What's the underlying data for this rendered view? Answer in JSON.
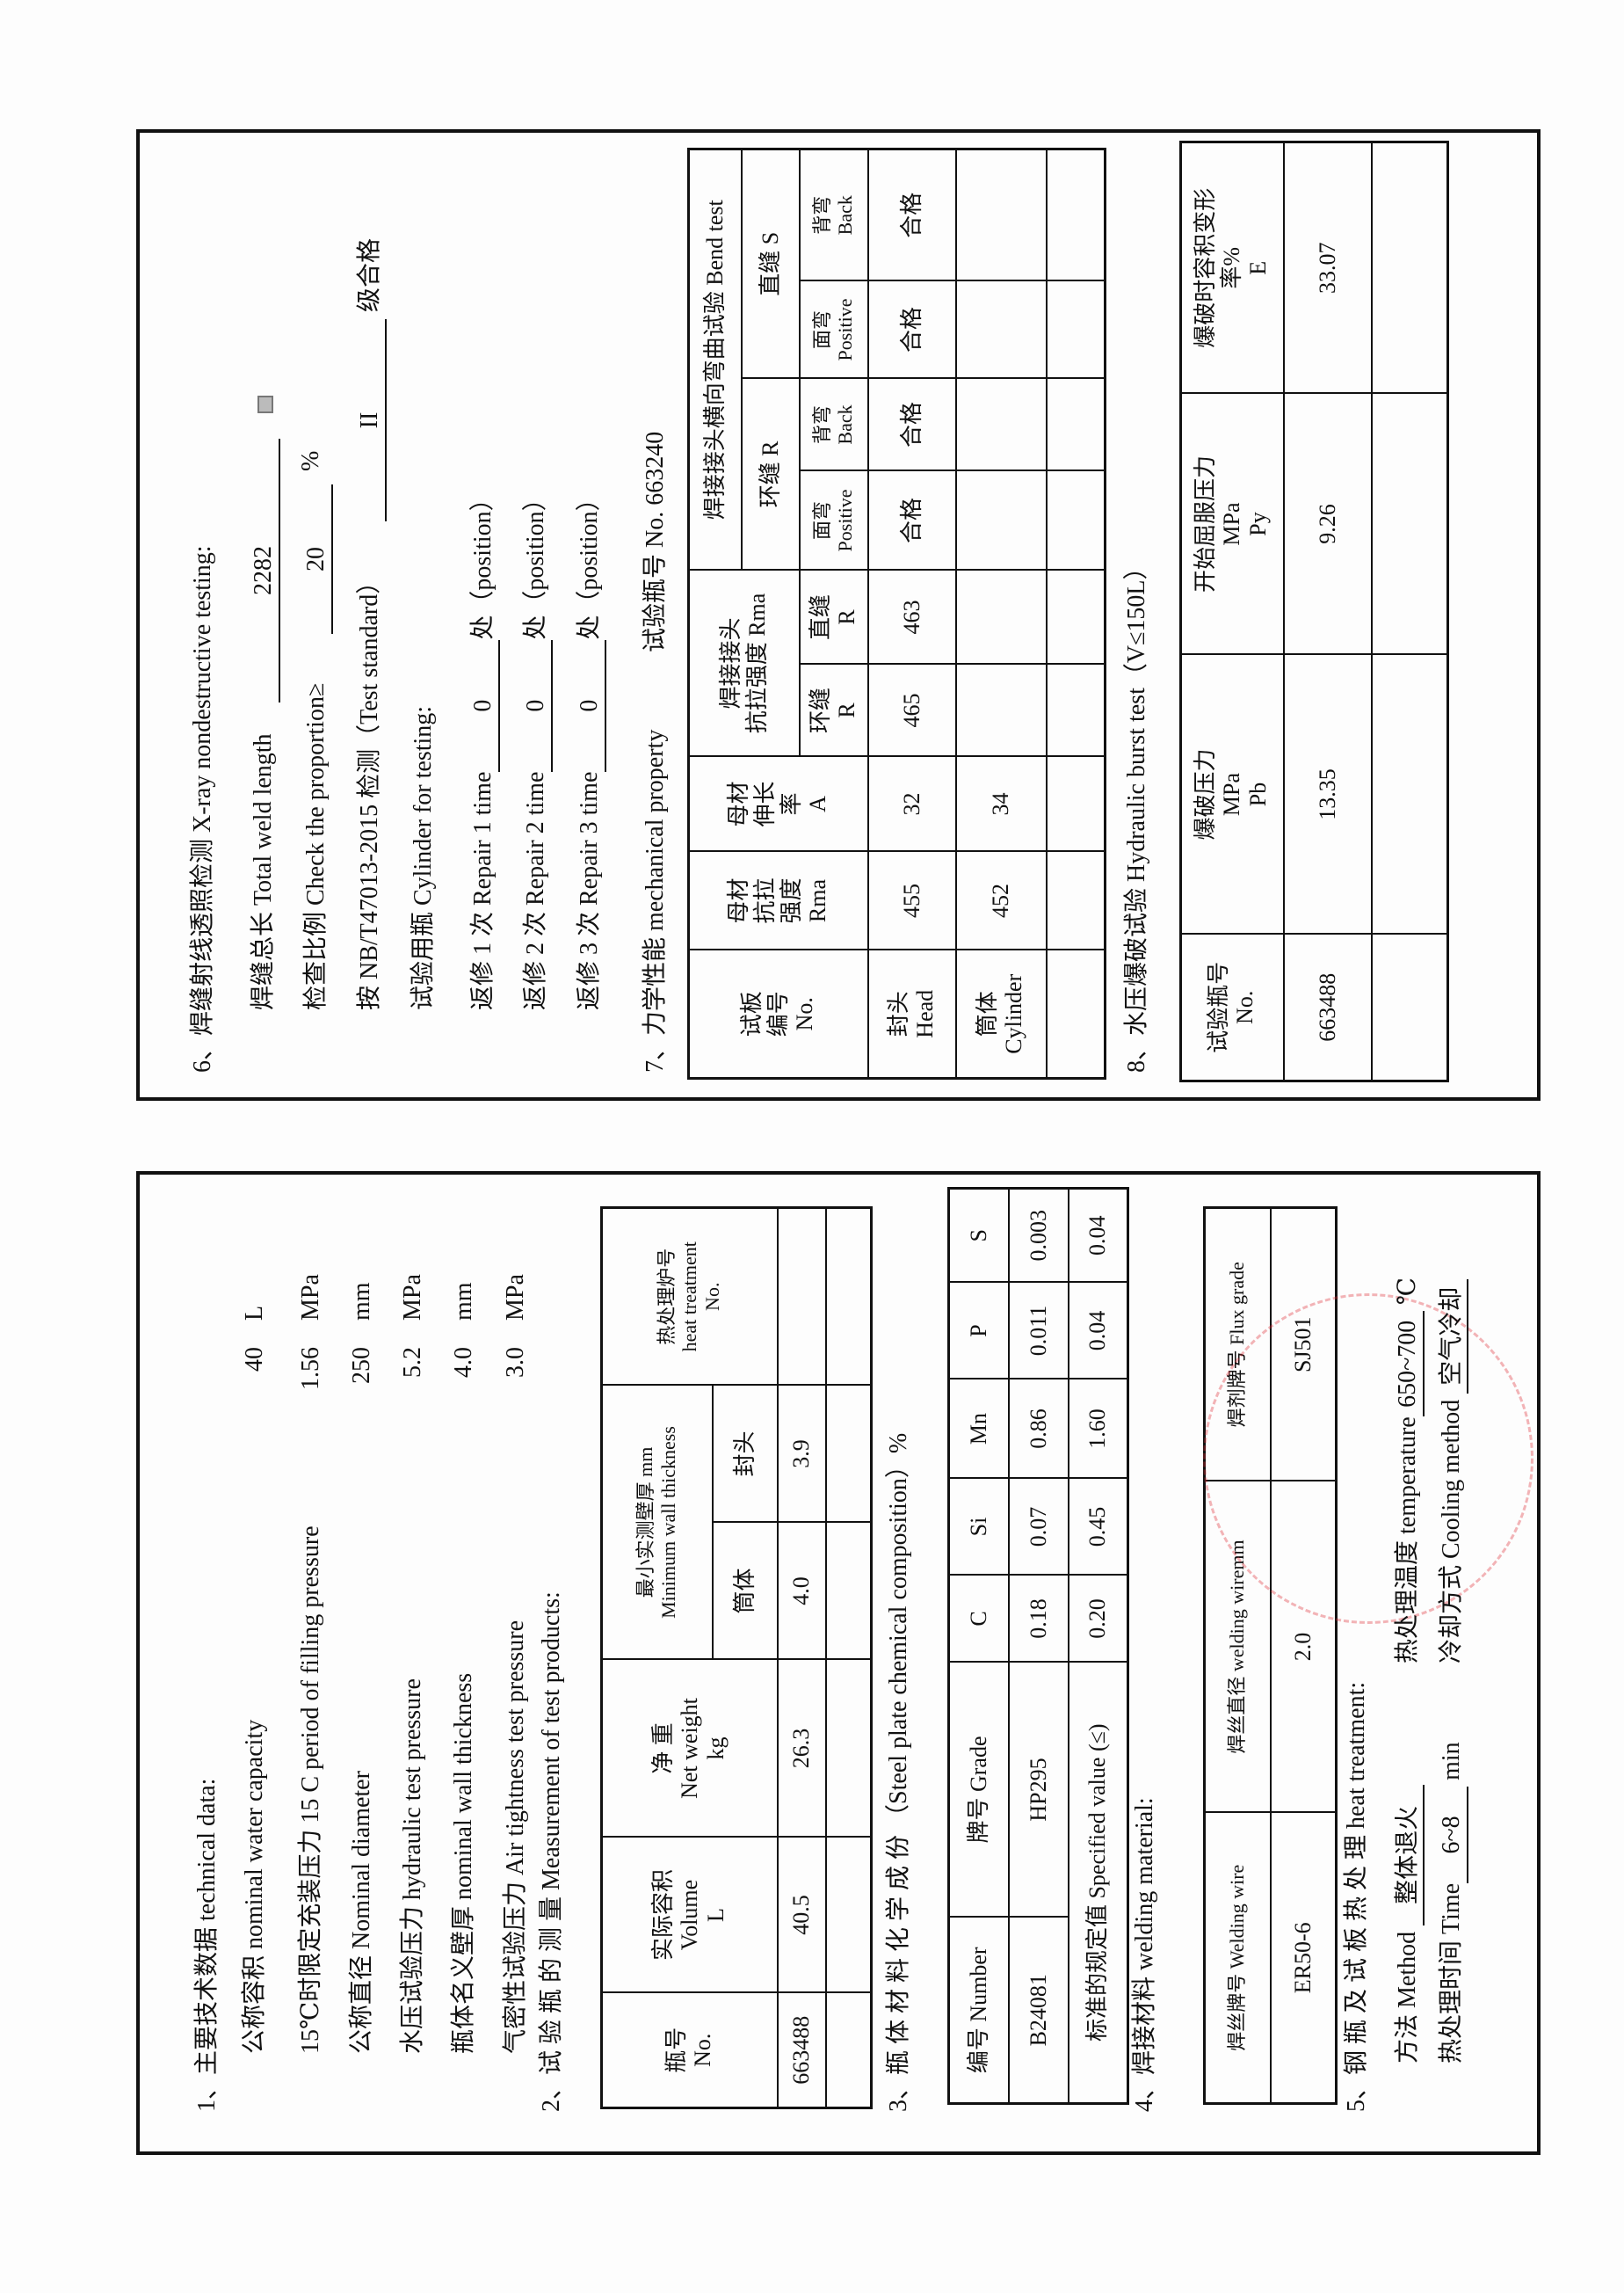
{
  "top_panel": {
    "s6": {
      "heading": "6、焊缝射线透照检测 X-ray nondestructive testing:",
      "weld_length_label": "焊缝总长 Total weld length",
      "weld_length_value": "2282",
      "proportion_label": "检查比例 Check the proportion≥",
      "proportion_value": "20",
      "proportion_unit": "%",
      "standard_label": "按 NB/T47013-2015 检测（Test standard）",
      "standard_grade": "II",
      "standard_suffix": "级合格",
      "cylinder_label": "试验用瓶 Cylinder for testing:",
      "repairs": [
        {
          "label": "返修 1 次 Repair 1 time",
          "value": "0",
          "suffix": "处（position）"
        },
        {
          "label": "返修 2 次 Repair 2 time",
          "value": "0",
          "suffix": "处（position）"
        },
        {
          "label": "返修 3 次 Repair 3 time",
          "value": "0",
          "suffix": "处（position）"
        }
      ]
    },
    "s7": {
      "heading": "7、力学性能 mechanical property",
      "test_no": "试验瓶号 No. 663240",
      "headers": {
        "no": "试板\n编号\nNo.",
        "base_rm": "母材\n抗拉\n强度\nRma",
        "base_a": "母材\n伸长\n率\nA",
        "weld_rm": "焊接接头\n抗拉强度 Rma",
        "weld_rm_circ": "环缝\nR",
        "weld_rm_long": "直缝\nR",
        "bend": "焊接接头横向弯曲试验 Bend test",
        "bend_circ": "环缝 R",
        "bend_long": "直缝 S",
        "positive": "面弯\nPositive",
        "back": "背弯\nBack"
      },
      "rows": [
        {
          "name": "封头\nHead",
          "rm": "455",
          "a": "32",
          "wr": "465",
          "wl": "463",
          "b1": "合格",
          "b2": "合格",
          "b3": "合格",
          "b4": "合格"
        },
        {
          "name": "筒体\nCylinder",
          "rm": "452",
          "a": "34",
          "wr": "",
          "wl": "",
          "b1": "",
          "b2": "",
          "b3": "",
          "b4": ""
        },
        {
          "name": "",
          "rm": "",
          "a": "",
          "wr": "",
          "wl": "",
          "b1": "",
          "b2": "",
          "b3": "",
          "b4": ""
        }
      ]
    },
    "s8": {
      "heading": "8、水压爆破试验 Hydraulic burst test（V≤150L）",
      "headers": [
        "试验瓶号\nNo.",
        "爆破压力\nMPa\nPb",
        "开始屈服压力\nMPa\nPy",
        "爆破时容积变形\n率%\nE"
      ],
      "rows": [
        [
          "663488",
          "13.35",
          "9.26",
          "33.07"
        ],
        [
          "",
          "",
          "",
          ""
        ]
      ]
    }
  },
  "bottom_panel": {
    "s1": {
      "heading": "1、主要技术数据 technical data:",
      "items": [
        {
          "label": "公称容积 nominal water capacity",
          "value": "40",
          "unit": "L"
        },
        {
          "label": "15℃时限定充装压力 15 C period of filling pressure",
          "value": "1.56",
          "unit": "MPa"
        },
        {
          "label": "公称直径 Nominal diameter",
          "value": "250",
          "unit": "mm"
        },
        {
          "label": "水压试验压力 hydraulic test pressure",
          "value": "5.2",
          "unit": "MPa"
        },
        {
          "label": "瓶体名义壁厚 nominal wall thickness",
          "value": "4.0",
          "unit": "mm"
        },
        {
          "label": "气密性试验压力 Air tightness test pressure",
          "value": "3.0",
          "unit": "MPa"
        }
      ]
    },
    "s2": {
      "heading": "2、试 验 瓶 的 测 量 Measurement of test products:",
      "headers": {
        "no": "瓶号\nNo.",
        "volume": "实际容积\nVolume\nL",
        "weight": "净 重\nNet weight\nkg",
        "thickness": "最小实测壁厚 mm\nMinimum wall thickness",
        "cylinder": "筒体",
        "head": "封头",
        "furnace": "热处理炉号\nheat treatment\nNo."
      },
      "rows": [
        [
          "663488",
          "40.5",
          "26.3",
          "4.0",
          "3.9",
          ""
        ],
        [
          "",
          "",
          "",
          "",
          "",
          ""
        ]
      ]
    },
    "s3": {
      "heading": "3、瓶 体 材 料 化 学 成 份 （Steel plate chemical composition）%",
      "headers": [
        "编号 Number",
        "牌号 Grade",
        "C",
        "Si",
        "Mn",
        "P",
        "S"
      ],
      "row": [
        "B24081",
        "HP295",
        "0.18",
        "0.07",
        "0.86",
        "0.011",
        "0.003"
      ],
      "spec_label": "标准的规定值 Specified value (≤)",
      "spec": [
        "0.20",
        "0.45",
        "1.60",
        "0.04",
        "0.04"
      ]
    },
    "s4": {
      "heading": "4、焊接材料 welding material:",
      "headers": [
        "焊丝牌号 Welding wire",
        "焊丝直径 welding wiremm",
        "焊剂牌号 Flux grade"
      ],
      "row": [
        "ER50-6",
        "2.0",
        "SJ501"
      ]
    },
    "s5": {
      "heading": "5、钢 瓶 及 试 板 热 处 理 heat treatment:",
      "method_label": "方法 Method",
      "method_value": "整体退火",
      "temp_label": "热处理温度 temperature",
      "temp_value": "650~700",
      "temp_unit": "℃",
      "time_label": "热处理时间 Time",
      "time_value": "6~8",
      "time_unit": "min",
      "cooling_label": "冷却方式 Cooling method",
      "cooling_value": "空气冷却"
    },
    "stamp_color": "#dc2832"
  }
}
